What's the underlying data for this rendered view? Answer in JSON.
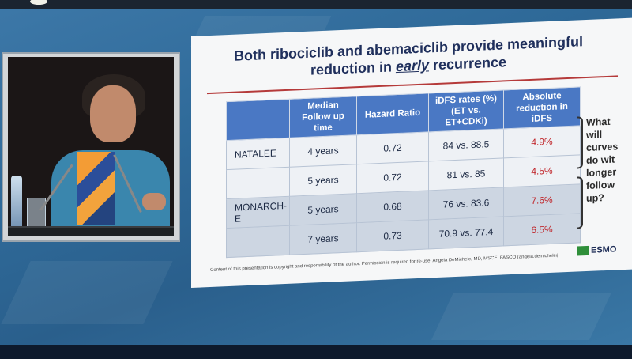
{
  "slide": {
    "title_part1": "Both ribociclib and abemaciclib provide meaningful",
    "title_part2_before": "reduction in ",
    "title_part2_emphasis": "early",
    "title_part2_after": " recurrence",
    "table": {
      "headers": [
        "",
        "Median Follow up time",
        "Hazard Ratio",
        "iDFS rates (%) (ET vs. ET+CDKi)",
        "Absolute reduction in iDFS"
      ],
      "rows": [
        {
          "trial": "NATALEE",
          "followup": "4 years",
          "hr": "0.72",
          "idfs": "84 vs. 88.5",
          "reduction": "4.9%"
        },
        {
          "trial": "",
          "followup": "5 years",
          "hr": "0.72",
          "idfs": "81 vs. 85",
          "reduction": "4.5%"
        },
        {
          "trial": "MONARCH-E",
          "followup": "5 years",
          "hr": "0.68",
          "idfs": "76 vs. 83.6",
          "reduction": "7.6%"
        },
        {
          "trial": "",
          "followup": "7 years",
          "hr": "0.73",
          "idfs": "70.9 vs. 77.4",
          "reduction": "6.5%"
        }
      ]
    },
    "side_question": [
      "What",
      "will",
      "curves",
      "do wit",
      "longer",
      "follow",
      "up?"
    ],
    "footer": "Content of this presentation is copyright and responsibility of the author. Permission is required for re-use.   Angela DeMichele, MD, MSCE, FASCO (angela.demichele@pennmedicine.upenn.edu)",
    "logo": "ESMO"
  },
  "colors": {
    "header_blue": "#4a78c4",
    "reduction_red": "#c0262b",
    "title_navy": "#1f2f5c",
    "backdrop_blue": "#2f6a99"
  }
}
